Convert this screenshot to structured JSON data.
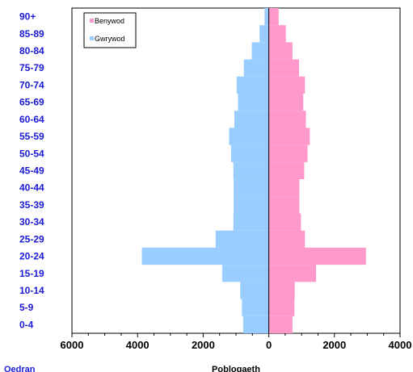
{
  "chart_data": {
    "type": "bar",
    "orientation": "horizontal",
    "subtype": "population-pyramid",
    "categories": [
      "0-4",
      "5-9",
      "10-14",
      "15-19",
      "20-24",
      "25-29",
      "30-34",
      "35-39",
      "40-44",
      "45-49",
      "50-54",
      "55-59",
      "60-64",
      "65-69",
      "70-74",
      "75-79",
      "80-84",
      "85-89",
      "90+"
    ],
    "series": [
      {
        "name": "Gwrywod",
        "color": "#99ccff",
        "side": "left",
        "values": [
          780,
          820,
          870,
          1420,
          3870,
          1620,
          1080,
          1070,
          1070,
          1080,
          1150,
          1210,
          1050,
          940,
          980,
          760,
          520,
          280,
          130
        ]
      },
      {
        "name": "Benywod",
        "color": "#ff99cc",
        "side": "right",
        "values": [
          720,
          780,
          790,
          1440,
          2960,
          1100,
          980,
          930,
          930,
          1080,
          1180,
          1250,
          1130,
          1050,
          1100,
          920,
          720,
          520,
          300
        ]
      }
    ],
    "xlabel": "Poblogaeth",
    "ylabel": "Oedran",
    "xlim": [
      -6000,
      4000
    ],
    "xticks": [
      {
        "value": -6000,
        "label": "6000"
      },
      {
        "value": -4000,
        "label": "4000"
      },
      {
        "value": -2000,
        "label": "2000"
      },
      {
        "value": 0,
        "label": "0"
      },
      {
        "value": 2000,
        "label": "2000"
      },
      {
        "value": 4000,
        "label": "4000"
      }
    ],
    "legend": {
      "position": "top-left",
      "entries": [
        "Benywod",
        "Gwrywod"
      ]
    },
    "grid": false
  }
}
